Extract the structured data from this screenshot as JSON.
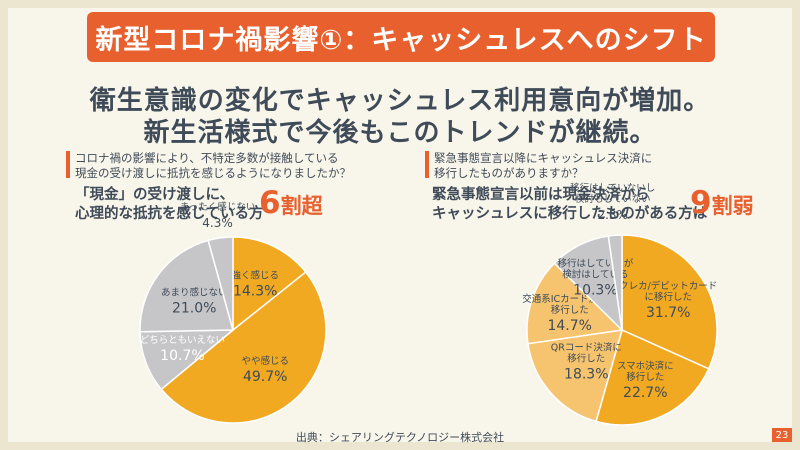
{
  "title": "新型コロナ禍影響①：キャッシュレスへのシフト",
  "headline": {
    "line1": "衛生意識の変化でキャッシュレス利用意向が増加。",
    "line2": "新生活様式で今後もこのトレンドが継続。"
  },
  "left": {
    "question_line1": "コロナ禍の影響により、不特定多数が接触している",
    "question_line2": "現金の受け渡しに抵抗を感じるようになりましたか？",
    "finding_line1": "「現金」の受け渡しに、",
    "finding_line2": "心理的な抵抗を感じている方",
    "big_digit": "6",
    "big_suffix": "割超"
  },
  "right": {
    "question_line1": "緊急事態宣言以降にキャッシュレス決済に",
    "question_line2": "移行したものがありますか？",
    "finding_line1": "緊急事態宣言以前は現金決済から",
    "finding_line2": "キャッシュレスに移行したものがある方は",
    "big_digit": "9",
    "big_suffix": "割弱"
  },
  "source": "出典：シェアリングテクノロジー株式会社",
  "page_number": "23",
  "colors": {
    "accent": "#e8602e",
    "orange": "#f0a921",
    "orange_light": "#f6c46e",
    "gray": "#c6c6c8",
    "text": "#3f4b58"
  },
  "chart_data": [
    {
      "type": "pie",
      "slices": [
        {
          "label": [
            "強く感じる"
          ],
          "value": 14.3,
          "display": "14.3%",
          "color": "#f0a921",
          "text_color": "#3f4b58"
        },
        {
          "label": [
            "やや感じる"
          ],
          "value": 49.7,
          "display": "49.7%",
          "color": "#f0a921",
          "text_color": "#3f4b58"
        },
        {
          "label": [
            "どちらともいえない"
          ],
          "value": 10.7,
          "display": "10.7%",
          "color": "#c6c6c8",
          "text_color": "#ffffff"
        },
        {
          "label": [
            "あまり感じない"
          ],
          "value": 21.0,
          "display": "21.0%",
          "color": "#c6c6c8",
          "text_color": "#3f4b58"
        },
        {
          "label": [
            "まったく感じない"
          ],
          "value": 4.3,
          "display": "4.3%",
          "color": "#c6c6c8",
          "text_color": "#3f4b58"
        }
      ]
    },
    {
      "type": "pie",
      "slices": [
        {
          "label": [
            "クレカ/デビットカード",
            "に移行した"
          ],
          "value": 31.7,
          "display": "31.7%",
          "color": "#f0a921",
          "text_color": "#3f4b58"
        },
        {
          "label": [
            "スマホ決済に",
            "移行した"
          ],
          "value": 22.7,
          "display": "22.7%",
          "color": "#f0a921",
          "text_color": "#3f4b58"
        },
        {
          "label": [
            "QRコード決済に",
            "移行した"
          ],
          "value": 18.3,
          "display": "18.3%",
          "color": "#f6c46e",
          "text_color": "#3f4b58"
        },
        {
          "label": [
            "交通系ICカード決済に",
            "移行した"
          ],
          "value": 14.7,
          "display": "14.7%",
          "color": "#f6c46e",
          "text_color": "#3f4b58"
        },
        {
          "label": [
            "移行はしているが",
            "検討はしている"
          ],
          "value": 10.3,
          "display": "10.3%",
          "color": "#c6c6c8",
          "text_color": "#3f4b58"
        },
        {
          "label": [
            "移行はしていないし",
            "検討もしていない"
          ],
          "value": 2.3,
          "display": "2.3%",
          "color": "#c6c6c8",
          "text_color": "#3f4b58"
        }
      ]
    }
  ]
}
